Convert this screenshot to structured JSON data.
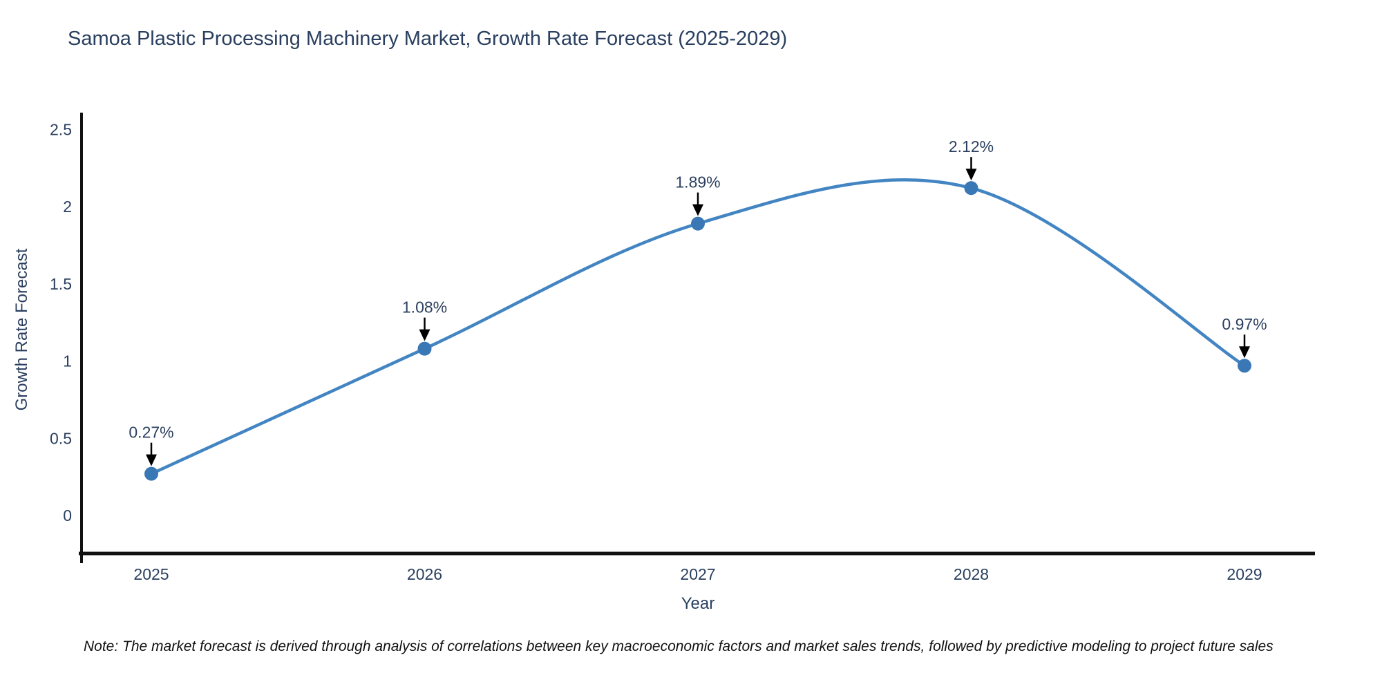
{
  "chart_data": {
    "type": "line",
    "title": "Samoa Plastic Processing Machinery Market, Growth Rate Forecast (2025-2029)",
    "xlabel": "Year",
    "ylabel": "Growth Rate Forecast",
    "x": [
      2025,
      2026,
      2027,
      2028,
      2029
    ],
    "values": [
      0.27,
      1.08,
      1.89,
      2.12,
      0.97
    ],
    "point_labels": [
      "0.27%",
      "1.08%",
      "1.89%",
      "2.12%",
      "0.97%"
    ],
    "xtick_labels": [
      "2025",
      "2026",
      "2027",
      "2028",
      "2029"
    ],
    "yticks": [
      0,
      0.5,
      1,
      1.5,
      2,
      2.5
    ],
    "ytick_labels": [
      "0",
      "0.5",
      "1",
      "1.5",
      "2",
      "2.5"
    ],
    "ylim": [
      -0.25,
      2.62
    ],
    "grid": false,
    "legend": "none",
    "line_shape": "spline",
    "colors": {
      "line": "#4285c2",
      "marker": "#3a77b5",
      "axis": "#111111",
      "text": "#2a3f5f",
      "annotation_arrow": "#000000"
    }
  },
  "footnote": "Note: The market forecast is derived through analysis of correlations between key macroeconomic factors and market sales trends, followed by predictive modeling to project future sales"
}
